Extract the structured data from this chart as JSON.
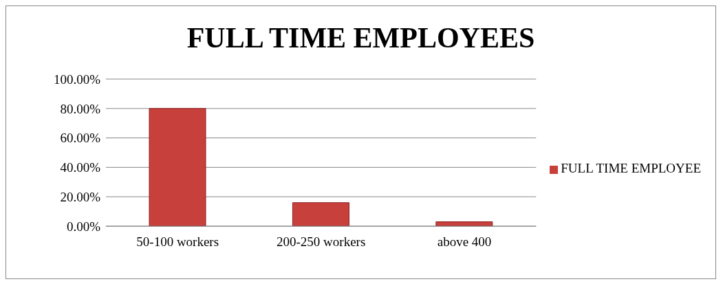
{
  "chart_data": {
    "type": "bar",
    "title": "FULL TIME EMPLOYEES",
    "categories": [
      "50-100 workers",
      "200-250 workers",
      "above 400"
    ],
    "series": [
      {
        "name": "FULL TIME EMPLOYEE",
        "color": "#c8403c",
        "values": [
          80,
          16,
          3
        ]
      }
    ],
    "ylim": [
      0,
      100
    ],
    "yticks": [
      {
        "value": 0,
        "label": "0.00%"
      },
      {
        "value": 20,
        "label": "20.00%"
      },
      {
        "value": 40,
        "label": "40.00%"
      },
      {
        "value": 60,
        "label": "60.00%"
      },
      {
        "value": 80,
        "label": "80.00%"
      },
      {
        "value": 100,
        "label": "100.00%"
      }
    ],
    "grid": "y",
    "legend": "right"
  }
}
